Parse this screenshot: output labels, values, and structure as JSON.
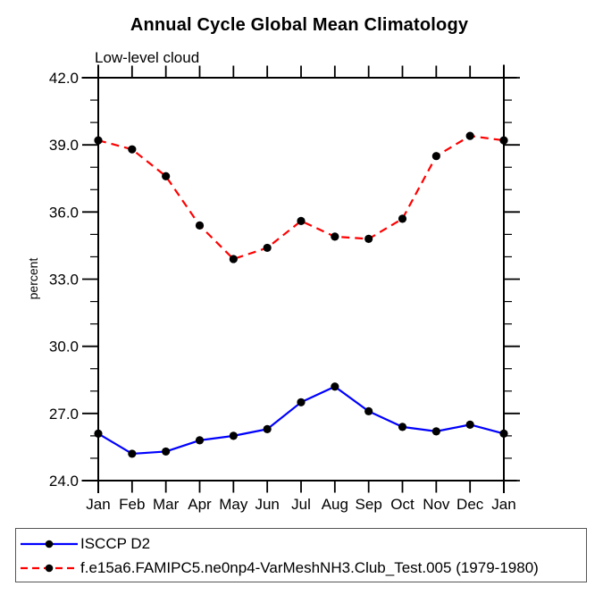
{
  "chart_data": {
    "type": "line",
    "title": "Annual Cycle Global Mean Climatology",
    "subtitle": "Low-level cloud",
    "ylabel": "percent",
    "xlabel": "",
    "x_tick_labels": [
      "Jan",
      "Feb",
      "Mar",
      "Apr",
      "May",
      "Jun",
      "Jul",
      "Aug",
      "Sep",
      "Oct",
      "Nov",
      "Dec",
      "Jan"
    ],
    "ylim": [
      24.0,
      42.0
    ],
    "y_major_ticks": [
      24.0,
      27.0,
      30.0,
      33.0,
      36.0,
      39.0,
      42.0
    ],
    "y_tick_labels": [
      "24.0",
      "27.0",
      "30.0",
      "33.0",
      "36.0",
      "39.0",
      "42.0"
    ],
    "y_minor_step": 1.0,
    "grid": false,
    "legend_position": "bottom-left-box",
    "series": [
      {
        "name": "ISCCP D2",
        "color": "#0000ff",
        "line_style": "solid",
        "marker": "circle",
        "marker_color": "#000000",
        "values": [
          26.1,
          25.2,
          25.3,
          25.8,
          26.0,
          26.3,
          27.5,
          28.2,
          27.1,
          26.4,
          26.2,
          26.5,
          26.1
        ]
      },
      {
        "name": "f.e15a6.FAMIPC5.ne0np4-VarMeshNH3.Club_Test.005 (1979-1980)",
        "color": "#ff0000",
        "line_style": "dashed",
        "marker": "circle",
        "marker_color": "#000000",
        "values": [
          39.2,
          38.8,
          37.6,
          35.4,
          33.9,
          34.4,
          35.6,
          34.9,
          34.8,
          35.7,
          38.5,
          39.4,
          39.2
        ]
      }
    ],
    "axis_color": "#000000",
    "background_color": "#ffffff"
  }
}
